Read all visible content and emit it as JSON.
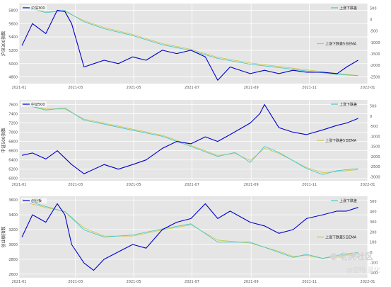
{
  "colors": {
    "background": "#e5e5e5",
    "grid": "#ffffff",
    "index_line": "#0000cc",
    "breadth_line": "#3cc6c6",
    "ema_line": "#c8c846"
  },
  "watermark": {
    "logo_text": "雪球",
    "text": "老虎社区",
    "handle": "@空吗 量化"
  },
  "chart_data": [
    {
      "type": "line",
      "ylabel": "沪深300指数",
      "x_ticks": [
        "2021-01",
        "2021-03",
        "2021-05",
        "2021-07",
        "2021-09",
        "2021-11",
        "2022-01"
      ],
      "xlim": [
        "2021-01",
        "2022-01"
      ],
      "y_ticks": [
        4800,
        5000,
        5200,
        5400,
        5600,
        5800
      ],
      "ylim": [
        4700,
        5900
      ],
      "y2_ticks": [
        500,
        0,
        -500,
        -1000,
        -1500,
        -2000,
        -2500
      ],
      "y2lim": [
        -2800,
        700
      ],
      "legend_left": "沪深300",
      "legend_right_top": "上涨下跌差",
      "legend_right_mid": "上涨下跌差5日EMA",
      "grid": true,
      "series": [
        {
          "name": "沪深300",
          "axis": "left",
          "x": [
            "2021-01-04",
            "2021-01-15",
            "2021-01-29",
            "2021-02-10",
            "2021-02-18",
            "2021-02-25",
            "2021-03-05",
            "2021-03-10",
            "2021-03-31",
            "2021-04-15",
            "2021-04-30",
            "2021-05-14",
            "2021-05-31",
            "2021-06-15",
            "2021-06-30",
            "2021-07-15",
            "2021-07-28",
            "2021-08-10",
            "2021-08-31",
            "2021-09-15",
            "2021-09-30",
            "2021-10-15",
            "2021-10-29",
            "2021-11-15",
            "2021-11-30",
            "2021-12-10",
            "2021-12-22"
          ],
          "values": [
            5270,
            5600,
            5450,
            5800,
            5780,
            5600,
            5200,
            4950,
            5050,
            5000,
            5100,
            5050,
            5200,
            5150,
            5200,
            5100,
            4750,
            4950,
            4850,
            4900,
            4850,
            4900,
            4870,
            4870,
            4850,
            4950,
            5050
          ]
        },
        {
          "name": "上涨下跌差",
          "axis": "right",
          "x": [
            "2021-01-04",
            "2021-01-29",
            "2021-02-18",
            "2021-03-10",
            "2021-03-31",
            "2021-04-30",
            "2021-05-31",
            "2021-06-30",
            "2021-07-28",
            "2021-08-31",
            "2021-09-30",
            "2021-10-29",
            "2021-11-30",
            "2021-12-22"
          ],
          "values": [
            600,
            300,
            400,
            -100,
            -400,
            -700,
            -1100,
            -1350,
            -1700,
            -1950,
            -2100,
            -2250,
            -2400,
            -2450
          ]
        },
        {
          "name": "上涨下跌差5日EMA",
          "axis": "right",
          "x": [
            "2021-01-04",
            "2021-01-29",
            "2021-02-18",
            "2021-03-10",
            "2021-03-31",
            "2021-04-30",
            "2021-05-31",
            "2021-06-30",
            "2021-07-28",
            "2021-08-31",
            "2021-09-30",
            "2021-10-29",
            "2021-11-30",
            "2021-12-22"
          ],
          "values": [
            550,
            350,
            350,
            -50,
            -350,
            -650,
            -1050,
            -1300,
            -1650,
            -1900,
            -2050,
            -2200,
            -2350,
            -2450
          ]
        }
      ]
    },
    {
      "type": "line",
      "ylabel": "中证500指数",
      "x_ticks": [
        "2021-01",
        "2021-03",
        "2021-05",
        "2021-07",
        "2021-09",
        "2021-11",
        "2022-01"
      ],
      "xlim": [
        "2021-01",
        "2022-01"
      ],
      "y_ticks": [
        6000,
        6200,
        6400,
        6600,
        6800,
        7000,
        7200,
        7400,
        7600
      ],
      "ylim": [
        5950,
        7700
      ],
      "y2_ticks": [
        500,
        0,
        -500,
        -1000,
        -1500,
        -2000,
        -2500,
        -3000
      ],
      "y2lim": [
        -3200,
        800
      ],
      "legend_left": "中证500",
      "legend_right_top": "上涨下跌差",
      "legend_right_mid": "上涨下跌差5日EMA",
      "grid": true,
      "series": [
        {
          "name": "中证500",
          "axis": "left",
          "x": [
            "2021-01-04",
            "2021-01-15",
            "2021-01-29",
            "2021-02-10",
            "2021-02-25",
            "2021-03-10",
            "2021-03-31",
            "2021-04-15",
            "2021-04-30",
            "2021-05-14",
            "2021-05-31",
            "2021-06-15",
            "2021-06-30",
            "2021-07-15",
            "2021-07-28",
            "2021-08-10",
            "2021-08-31",
            "2021-09-10",
            "2021-09-15",
            "2021-09-30",
            "2021-10-15",
            "2021-10-29",
            "2021-11-15",
            "2021-11-30",
            "2021-12-10",
            "2021-12-22"
          ],
          "values": [
            6500,
            6550,
            6420,
            6600,
            6300,
            6100,
            6300,
            6200,
            6300,
            6400,
            6650,
            6800,
            6750,
            6900,
            6800,
            6950,
            7200,
            7400,
            7600,
            7100,
            7000,
            6950,
            7050,
            7150,
            7200,
            7300
          ]
        },
        {
          "name": "上涨下跌差",
          "axis": "right",
          "x": [
            "2021-01-04",
            "2021-01-29",
            "2021-02-18",
            "2021-03-10",
            "2021-03-31",
            "2021-04-30",
            "2021-05-31",
            "2021-06-30",
            "2021-07-28",
            "2021-08-15",
            "2021-08-31",
            "2021-09-15",
            "2021-09-30",
            "2021-10-29",
            "2021-11-15",
            "2021-11-30",
            "2021-12-22"
          ],
          "values": [
            600,
            300,
            400,
            -200,
            -400,
            -700,
            -1000,
            -1500,
            -2000,
            -1800,
            -2300,
            -1500,
            -1800,
            -2600,
            -2900,
            -2700,
            -2600
          ]
        },
        {
          "name": "上涨下跌差5日EMA",
          "axis": "right",
          "x": [
            "2021-01-04",
            "2021-01-29",
            "2021-02-18",
            "2021-03-10",
            "2021-03-31",
            "2021-04-30",
            "2021-05-31",
            "2021-06-30",
            "2021-07-28",
            "2021-08-15",
            "2021-08-31",
            "2021-09-15",
            "2021-09-30",
            "2021-10-29",
            "2021-11-15",
            "2021-11-30",
            "2021-12-22"
          ],
          "values": [
            550,
            350,
            350,
            -150,
            -350,
            -650,
            -950,
            -1450,
            -1950,
            -1850,
            -2200,
            -1600,
            -1850,
            -2550,
            -2800,
            -2750,
            -2650
          ]
        }
      ]
    },
    {
      "type": "line",
      "ylabel": "创业板指数",
      "x_ticks": [
        "2021-01",
        "2021-03",
        "2021-05",
        "2021-07",
        "2021-09",
        "2021-11",
        "2022-01"
      ],
      "xlim": [
        "2021-01",
        "2022-01"
      ],
      "y_ticks": [
        2600,
        2800,
        3000,
        3200,
        3400,
        3600
      ],
      "ylim": [
        2550,
        3650
      ],
      "y2_ticks": [
        500,
        400,
        300,
        200,
        100,
        0,
        -100,
        -200
      ],
      "y2lim": [
        -250,
        550
      ],
      "legend_left": "创业板",
      "legend_right_top": "上涨下跌差",
      "legend_right_mid": "上涨下跌差5日EMA",
      "grid": true,
      "series": [
        {
          "name": "创业板",
          "axis": "left",
          "x": [
            "2021-01-04",
            "2021-01-15",
            "2021-01-29",
            "2021-02-10",
            "2021-02-18",
            "2021-02-25",
            "2021-03-10",
            "2021-03-20",
            "2021-03-31",
            "2021-04-15",
            "2021-04-30",
            "2021-05-14",
            "2021-05-31",
            "2021-06-15",
            "2021-06-30",
            "2021-07-15",
            "2021-07-28",
            "2021-08-10",
            "2021-08-31",
            "2021-09-15",
            "2021-09-30",
            "2021-10-15",
            "2021-10-29",
            "2021-11-15",
            "2021-11-30",
            "2021-12-10",
            "2021-12-22"
          ],
          "values": [
            3100,
            3400,
            3300,
            3550,
            3400,
            3000,
            2750,
            2650,
            2800,
            2900,
            3000,
            2950,
            3200,
            3300,
            3350,
            3550,
            3350,
            3450,
            3300,
            3250,
            3150,
            3200,
            3350,
            3400,
            3450,
            3450,
            3500
          ]
        },
        {
          "name": "上涨下跌差",
          "axis": "right",
          "x": [
            "2021-01-04",
            "2021-01-29",
            "2021-02-18",
            "2021-03-10",
            "2021-03-31",
            "2021-04-30",
            "2021-05-31",
            "2021-06-30",
            "2021-07-28",
            "2021-08-31",
            "2021-09-30",
            "2021-10-15",
            "2021-10-29",
            "2021-11-15",
            "2021-11-30",
            "2021-12-22"
          ],
          "values": [
            520,
            450,
            400,
            220,
            150,
            170,
            230,
            280,
            100,
            100,
            0,
            -50,
            -20,
            -60,
            -30,
            0
          ]
        },
        {
          "name": "上涨下跌差5日EMA",
          "axis": "right",
          "x": [
            "2021-01-04",
            "2021-01-29",
            "2021-02-18",
            "2021-03-10",
            "2021-03-31",
            "2021-04-30",
            "2021-05-31",
            "2021-06-30",
            "2021-07-28",
            "2021-08-31",
            "2021-09-30",
            "2021-10-15",
            "2021-10-29",
            "2021-11-15",
            "2021-11-30",
            "2021-12-22"
          ],
          "values": [
            500,
            440,
            400,
            240,
            160,
            160,
            220,
            270,
            120,
            90,
            10,
            -40,
            -30,
            -60,
            -40,
            -10
          ]
        }
      ]
    }
  ]
}
